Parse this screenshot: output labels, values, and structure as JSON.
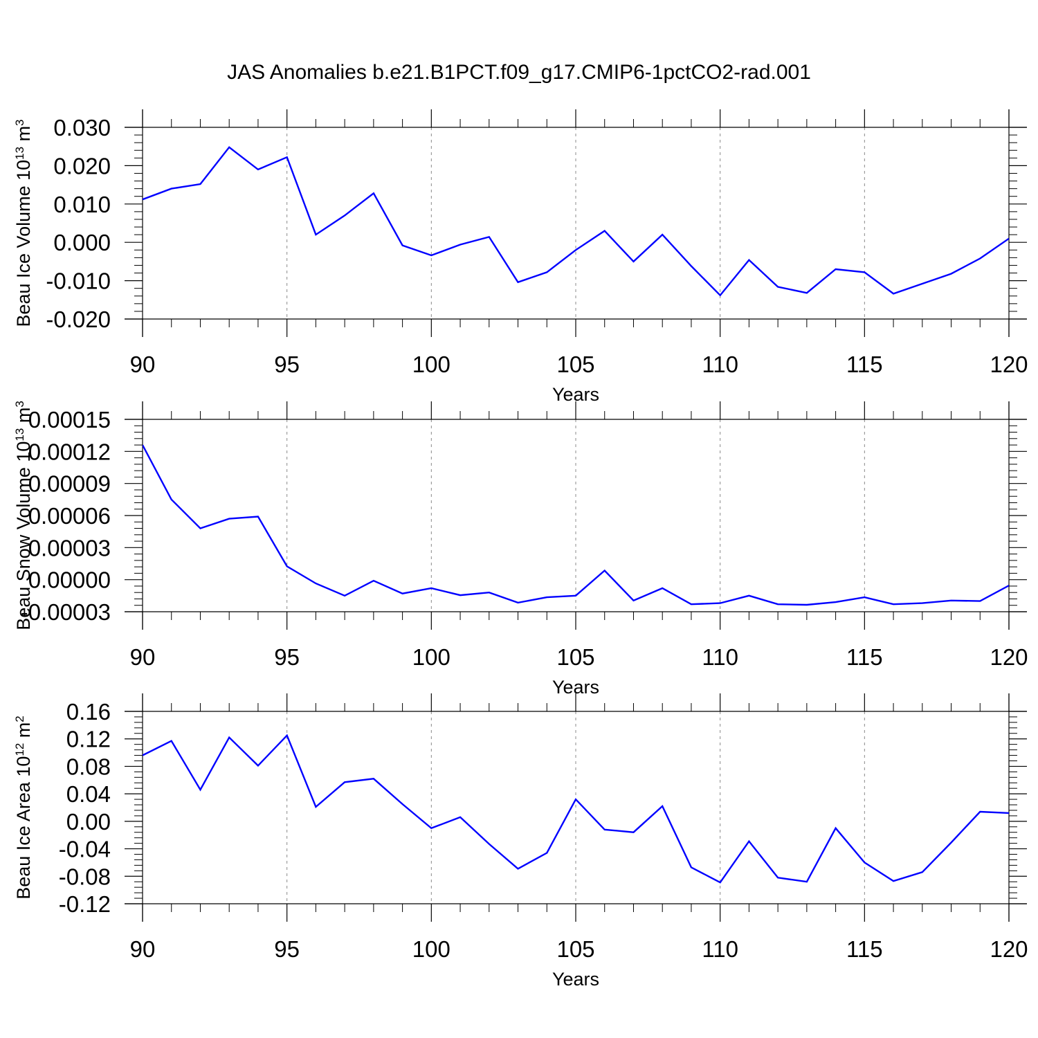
{
  "title": "JAS Anomalies b.e21.B1PCT.f09_g17.CMIP6-1pctCO2-rad.001",
  "colors": {
    "line": "#0000ff",
    "axis": "#000000",
    "grid": "#888888"
  },
  "chart_data": [
    {
      "type": "line",
      "title": "",
      "xlabel": "Years",
      "ylabel": "Beau Ice Volume 10^13 m^3",
      "ylabel_base": "Beau Ice Volume 10",
      "ylabel_exp": "13",
      "ylabel_unit": " m",
      "ylabel_unit_exp": "3",
      "xlim": [
        90,
        120
      ],
      "ylim": [
        -0.02,
        0.03
      ],
      "xticks": [
        90,
        95,
        100,
        105,
        110,
        115,
        120
      ],
      "xtick_labels": [
        "90",
        "95",
        "100",
        "105",
        "110",
        "115",
        "120"
      ],
      "yticks": [
        -0.02,
        -0.01,
        0.0,
        0.01,
        0.02,
        0.03
      ],
      "ytick_labels": [
        "-0.020",
        "-0.010",
        "0.000",
        "0.010",
        "0.020",
        "0.030"
      ],
      "grid": "vertical dashed at major x ticks",
      "x": [
        90,
        91,
        92,
        93,
        94,
        95,
        96,
        97,
        98,
        99,
        100,
        101,
        102,
        103,
        104,
        105,
        106,
        107,
        108,
        109,
        110,
        111,
        112,
        113,
        114,
        115,
        116,
        117,
        118,
        119,
        120
      ],
      "series": [
        {
          "values": [
            0.0112,
            0.014,
            0.0152,
            0.0248,
            0.019,
            0.0222,
            0.002,
            0.007,
            0.0128,
            -0.0008,
            -0.0034,
            -0.0006,
            0.0014,
            -0.0104,
            -0.0078,
            -0.002,
            0.003,
            -0.005,
            0.002,
            -0.0062,
            -0.0138,
            -0.0046,
            -0.0116,
            -0.0132,
            -0.007,
            -0.0078,
            -0.0134,
            -0.0108,
            -0.0082,
            -0.0042,
            0.001
          ]
        }
      ]
    },
    {
      "type": "line",
      "title": "",
      "xlabel": "Years",
      "ylabel": "Beau Snow Volume 10^13 m^3",
      "ylabel_base": "Beau Snow Volume 10",
      "ylabel_exp": "13",
      "ylabel_unit": " m",
      "ylabel_unit_exp": "3",
      "xlim": [
        90,
        120
      ],
      "ylim": [
        -3e-05,
        0.00015
      ],
      "xticks": [
        90,
        95,
        100,
        105,
        110,
        115,
        120
      ],
      "xtick_labels": [
        "90",
        "95",
        "100",
        "105",
        "110",
        "115",
        "120"
      ],
      "yticks": [
        -3e-05,
        0.0,
        3e-05,
        6e-05,
        9e-05,
        0.00012,
        0.00015
      ],
      "ytick_labels": [
        "-0.00003",
        "0.00000",
        "0.00003",
        "0.00006",
        "0.00009",
        "0.00012",
        "0.00015"
      ],
      "grid": "vertical dashed at major x ticks",
      "x": [
        90,
        91,
        92,
        93,
        94,
        95,
        96,
        97,
        98,
        99,
        100,
        101,
        102,
        103,
        104,
        105,
        106,
        107,
        108,
        109,
        110,
        111,
        112,
        113,
        114,
        115,
        116,
        117,
        118,
        119,
        120
      ],
      "series": [
        {
          "values": [
            0.000126,
            7.5e-05,
            4.8e-05,
            5.7e-05,
            5.9e-05,
            1.25e-05,
            -3.5e-06,
            -1.5e-05,
            -1e-06,
            -1.3e-05,
            -8e-06,
            -1.45e-05,
            -1.2e-05,
            -2.15e-05,
            -1.65e-05,
            -1.5e-05,
            8.5e-06,
            -1.95e-05,
            -8e-06,
            -2.3e-05,
            -2.2e-05,
            -1.5e-05,
            -2.3e-05,
            -2.35e-05,
            -2.1e-05,
            -1.65e-05,
            -2.3e-05,
            -2.2e-05,
            -1.95e-05,
            -2e-05,
            -5.5e-06
          ]
        }
      ]
    },
    {
      "type": "line",
      "title": "",
      "xlabel": "Years",
      "ylabel": "Beau Ice Area 10^12 m^2",
      "ylabel_base": "Beau Ice Area 10",
      "ylabel_exp": "12",
      "ylabel_unit": " m",
      "ylabel_unit_exp": "2",
      "xlim": [
        90,
        120
      ],
      "ylim": [
        -0.12,
        0.16
      ],
      "xticks": [
        90,
        95,
        100,
        105,
        110,
        115,
        120
      ],
      "xtick_labels": [
        "90",
        "95",
        "100",
        "105",
        "110",
        "115",
        "120"
      ],
      "yticks": [
        -0.12,
        -0.08,
        -0.04,
        0.0,
        0.04,
        0.08,
        0.12,
        0.16
      ],
      "ytick_labels": [
        "-0.12",
        "-0.08",
        "-0.04",
        "0.00",
        "0.04",
        "0.08",
        "0.12",
        "0.16"
      ],
      "grid": "vertical dashed at major x ticks",
      "x": [
        90,
        91,
        92,
        93,
        94,
        95,
        96,
        97,
        98,
        99,
        100,
        101,
        102,
        103,
        104,
        105,
        106,
        107,
        108,
        109,
        110,
        111,
        112,
        113,
        114,
        115,
        116,
        117,
        118,
        119,
        120
      ],
      "series": [
        {
          "values": [
            0.096,
            0.117,
            0.046,
            0.122,
            0.081,
            0.125,
            0.021,
            0.057,
            0.062,
            0.025,
            -0.01,
            0.006,
            -0.033,
            -0.069,
            -0.046,
            0.032,
            -0.012,
            -0.016,
            0.022,
            -0.067,
            -0.089,
            -0.029,
            -0.082,
            -0.088,
            -0.01,
            -0.06,
            -0.087,
            -0.074,
            -0.031,
            0.014,
            0.012
          ]
        }
      ]
    }
  ]
}
